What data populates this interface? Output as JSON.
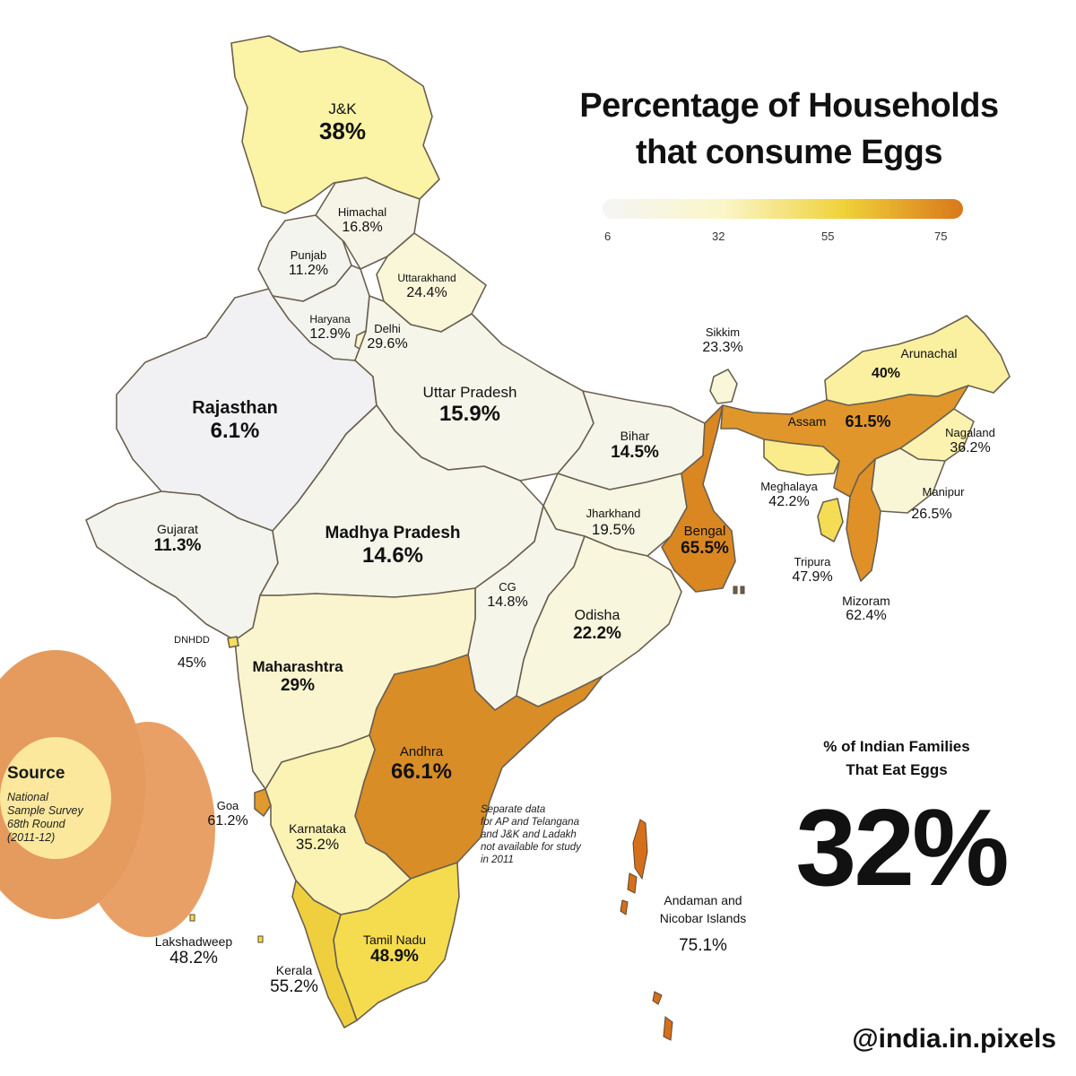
{
  "title": {
    "line1": "Percentage of Households",
    "line2": "that consume Eggs"
  },
  "legend": {
    "ticks": [
      "6",
      "32",
      "55",
      "75"
    ],
    "colors": [
      "#f5f5f5",
      "#fbf6c8",
      "#f0d23a",
      "#d9781a"
    ]
  },
  "regions": {
    "jk": {
      "name": "J&K",
      "value": "38%",
      "color": "#fbf3a6"
    },
    "himachal": {
      "name": "Himachal",
      "value": "16.8%",
      "color": "#f6f4e6"
    },
    "punjab": {
      "name": "Punjab",
      "value": "11.2%",
      "color": "#f4f4ee"
    },
    "uttarakhand": {
      "name": "Uttarakhand",
      "value": "24.4%",
      "color": "#f9f7d8"
    },
    "haryana": {
      "name": "Haryana",
      "value": "12.9%",
      "color": "#f4f4ee"
    },
    "delhi": {
      "name": "Delhi",
      "value": "29.6%",
      "color": "#faf5cf"
    },
    "rajasthan": {
      "name": "Rajasthan",
      "value": "6.1%",
      "color": "#f1f1f3"
    },
    "up": {
      "name": "Uttar Pradesh",
      "value": "15.9%",
      "color": "#f6f5ea"
    },
    "bihar": {
      "name": "Bihar",
      "value": "14.5%",
      "color": "#f6f5ea"
    },
    "sikkim": {
      "name": "Sikkim",
      "value": "23.3%",
      "color": "#f9f7da"
    },
    "arunachal": {
      "name": "Arunachal",
      "value": "40%",
      "color": "#fbf0a0"
    },
    "assam": {
      "name": "Assam",
      "value": "61.5%",
      "color": "#e0962a"
    },
    "nagaland": {
      "name": "Nagaland",
      "value": "36.2%",
      "color": "#fbf2b0"
    },
    "meghalaya": {
      "name": "Meghalaya",
      "value": "42.2%",
      "color": "#faec8a"
    },
    "manipur": {
      "name": "Manipur",
      "value": "26.5%",
      "color": "#f9f6d6"
    },
    "tripura": {
      "name": "Tripura",
      "value": "47.9%",
      "color": "#f5dc55"
    },
    "mizoram": {
      "name": "Mizoram",
      "value": "62.4%",
      "color": "#df9128"
    },
    "gujarat": {
      "name": "Gujarat",
      "value": "11.3%",
      "color": "#f4f4ee"
    },
    "mp": {
      "name": "Madhya Pradesh",
      "value": "14.6%",
      "color": "#f6f5ea"
    },
    "jharkhand": {
      "name": "Jharkhand",
      "value": "19.5%",
      "color": "#f7f6e2"
    },
    "bengal": {
      "name": "Bengal",
      "value": "65.5%",
      "color": "#da8722"
    },
    "cg": {
      "name": "CG",
      "value": "14.8%",
      "color": "#f6f5ea"
    },
    "odisha": {
      "name": "Odisha",
      "value": "22.2%",
      "color": "#f8f7de"
    },
    "dnhdd": {
      "name": "DNHDD",
      "value": "45%",
      "color": "#f5df5e"
    },
    "maharashtra": {
      "name": "Maharashtra",
      "value": "29%",
      "color": "#faf5cf"
    },
    "andhra": {
      "name": "Andhra",
      "value": "66.1%",
      "color": "#d98d27"
    },
    "goa": {
      "name": "Goa",
      "value": "61.2%",
      "color": "#e0992c"
    },
    "karnataka": {
      "name": "Karnataka",
      "value": "35.2%",
      "color": "#fbf3b4"
    },
    "lakshadweep": {
      "name": "Lakshadweep",
      "value": "48.2%",
      "color": "#f4da52"
    },
    "kerala": {
      "name": "Kerala",
      "value": "55.2%",
      "color": "#f0cf3e"
    },
    "tamilnadu": {
      "name": "Tamil Nadu",
      "value": "48.9%",
      "color": "#f4dc4e"
    },
    "andaman": {
      "name": "Andaman and Nicobar Islands",
      "name_line1": "Andaman and",
      "name_line2": "Nicobar Islands",
      "value": "75.1%",
      "color": "#d46f1c"
    }
  },
  "stat": {
    "heading_line1": "% of Indian Families",
    "heading_line2": "That Eat Eggs",
    "value": "32%"
  },
  "note": {
    "line1": "Separate data",
    "line2": "for AP and Telangana",
    "line3": "and J&K and Ladakh",
    "line4": "not available for study",
    "line5": "in 2011"
  },
  "source": {
    "title": "Source",
    "line1": "National",
    "line2": "Sample Survey",
    "line3": "68th Round",
    "line4": "(2011-12)"
  },
  "handle": "@india.in.pixels"
}
